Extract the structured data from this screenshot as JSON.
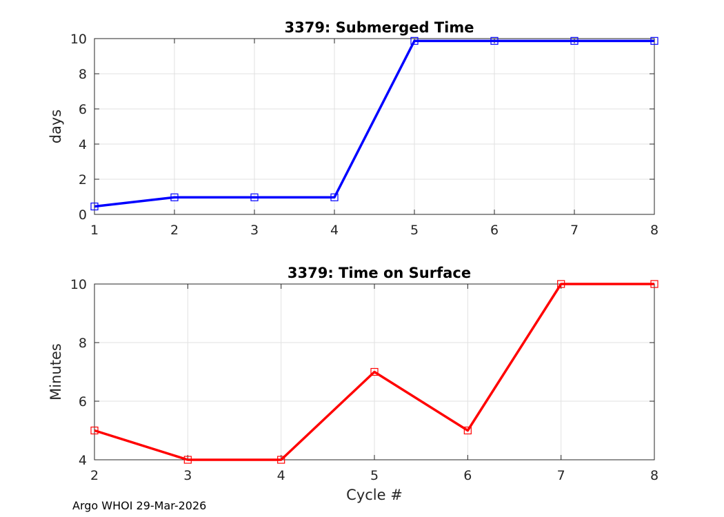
{
  "chart_data": [
    {
      "type": "line",
      "title": "3379: Submerged Time",
      "xlabel": "",
      "ylabel": "days",
      "xlim": [
        1,
        8
      ],
      "ylim": [
        0,
        10
      ],
      "xticks": [
        "1",
        "2",
        "3",
        "4",
        "5",
        "6",
        "7",
        "8"
      ],
      "yticks": [
        "0",
        "2",
        "4",
        "6",
        "8",
        "10"
      ],
      "grid": true,
      "marker": "square",
      "line_color": "#0000ff",
      "marker_color": "#0000ff",
      "x": [
        1,
        2,
        3,
        4,
        5,
        6,
        7,
        8
      ],
      "y": [
        0.45,
        0.97,
        0.97,
        0.97,
        9.87,
        9.87,
        9.87,
        9.87
      ]
    },
    {
      "type": "line",
      "title": "3379: Time on Surface",
      "xlabel": "Cycle #",
      "ylabel": "Minutes",
      "xlim": [
        2,
        8
      ],
      "ylim": [
        4,
        10
      ],
      "xticks": [
        "2",
        "3",
        "4",
        "5",
        "6",
        "7",
        "8"
      ],
      "yticks": [
        "4",
        "6",
        "8",
        "10"
      ],
      "grid": true,
      "marker": "square",
      "line_color": "#ff0000",
      "marker_color": "#ff0000",
      "x": [
        2,
        3,
        4,
        5,
        6,
        7,
        8
      ],
      "y": [
        5,
        4,
        4,
        7,
        5,
        10,
        10
      ]
    }
  ],
  "footer": "Argo WHOI 29-Mar-2026"
}
